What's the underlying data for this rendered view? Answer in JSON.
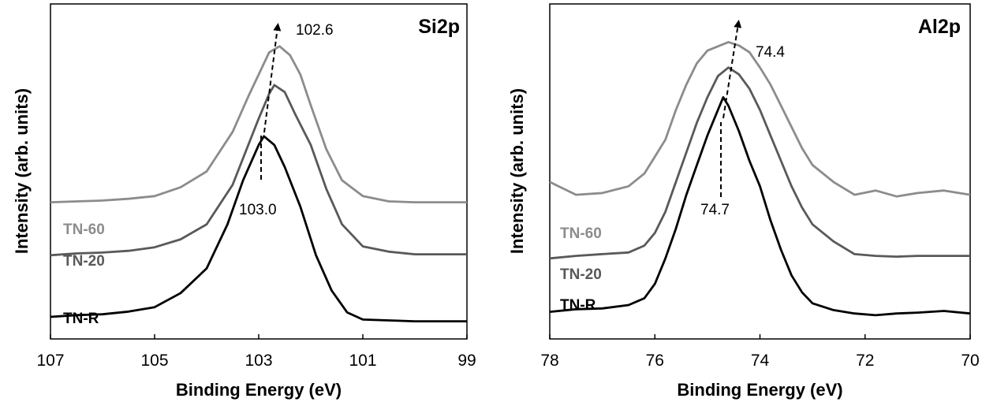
{
  "chart_data": [
    {
      "type": "line",
      "title": "Si2p",
      "xlabel": "Binding Energy (eV)",
      "ylabel": "Intensity (arb. units)",
      "xlim": [
        107,
        99
      ],
      "x_reversed": true,
      "x_ticks": [
        "107",
        "105",
        "103",
        "101",
        "99"
      ],
      "y_ticks_shown": false,
      "grid": false,
      "legend": "inline labels at left",
      "series": [
        {
          "name": "TN-60",
          "color": "#8c8c8c",
          "points": [
            [
              107.0,
              1.55
            ],
            [
              106.5,
              1.56
            ],
            [
              106.0,
              1.57
            ],
            [
              105.5,
              1.59
            ],
            [
              105.0,
              1.62
            ],
            [
              104.5,
              1.72
            ],
            [
              104.0,
              1.9
            ],
            [
              103.5,
              2.35
            ],
            [
              103.2,
              2.75
            ],
            [
              103.0,
              3.0
            ],
            [
              102.8,
              3.25
            ],
            [
              102.6,
              3.32
            ],
            [
              102.4,
              3.22
            ],
            [
              102.2,
              3.0
            ],
            [
              102.0,
              2.65
            ],
            [
              101.7,
              2.15
            ],
            [
              101.4,
              1.8
            ],
            [
              101.0,
              1.62
            ],
            [
              100.5,
              1.56
            ],
            [
              100.0,
              1.55
            ],
            [
              99.5,
              1.55
            ],
            [
              99.0,
              1.55
            ]
          ]
        },
        {
          "name": "TN-20",
          "color": "#595959",
          "points": [
            [
              107.0,
              0.95
            ],
            [
              106.5,
              0.97
            ],
            [
              106.0,
              0.98
            ],
            [
              105.5,
              1.0
            ],
            [
              105.0,
              1.04
            ],
            [
              104.5,
              1.13
            ],
            [
              104.0,
              1.3
            ],
            [
              103.5,
              1.75
            ],
            [
              103.2,
              2.2
            ],
            [
              103.0,
              2.5
            ],
            [
              102.8,
              2.78
            ],
            [
              102.7,
              2.88
            ],
            [
              102.5,
              2.8
            ],
            [
              102.3,
              2.55
            ],
            [
              102.0,
              2.2
            ],
            [
              101.7,
              1.7
            ],
            [
              101.4,
              1.3
            ],
            [
              101.0,
              1.05
            ],
            [
              100.5,
              0.99
            ],
            [
              100.0,
              0.96
            ],
            [
              99.5,
              0.96
            ],
            [
              99.0,
              0.96
            ]
          ]
        },
        {
          "name": "TN-R",
          "color": "#000000",
          "points": [
            [
              107.0,
              0.25
            ],
            [
              106.5,
              0.27
            ],
            [
              106.0,
              0.28
            ],
            [
              105.5,
              0.31
            ],
            [
              105.0,
              0.36
            ],
            [
              104.5,
              0.52
            ],
            [
              104.0,
              0.8
            ],
            [
              103.6,
              1.3
            ],
            [
              103.3,
              1.8
            ],
            [
              103.0,
              2.2
            ],
            [
              102.9,
              2.3
            ],
            [
              102.7,
              2.2
            ],
            [
              102.5,
              1.95
            ],
            [
              102.2,
              1.5
            ],
            [
              101.9,
              0.95
            ],
            [
              101.6,
              0.55
            ],
            [
              101.3,
              0.3
            ],
            [
              101.0,
              0.22
            ],
            [
              100.5,
              0.21
            ],
            [
              100.0,
              0.2
            ],
            [
              99.5,
              0.2
            ],
            [
              99.0,
              0.2
            ]
          ]
        }
      ],
      "annotations": [
        {
          "text": "103.0",
          "x": 103.0
        },
        {
          "text": "102.6",
          "x": 102.6
        }
      ]
    },
    {
      "type": "line",
      "title": "Al2p",
      "xlabel": "Binding Energy (eV)",
      "ylabel": "Intensity (arb. units)",
      "xlim": [
        78,
        70
      ],
      "x_reversed": true,
      "x_ticks": [
        "78",
        "76",
        "74",
        "72",
        "70"
      ],
      "y_ticks_shown": false,
      "grid": false,
      "legend": "inline labels at left",
      "series": [
        {
          "name": "TN-60",
          "color": "#8c8c8c",
          "points": [
            [
              78.0,
              1.85
            ],
            [
              77.5,
              1.7
            ],
            [
              77.0,
              1.72
            ],
            [
              76.5,
              1.8
            ],
            [
              76.2,
              1.95
            ],
            [
              76.0,
              2.15
            ],
            [
              75.8,
              2.35
            ],
            [
              75.6,
              2.7
            ],
            [
              75.4,
              3.0
            ],
            [
              75.2,
              3.25
            ],
            [
              75.0,
              3.4
            ],
            [
              74.8,
              3.45
            ],
            [
              74.6,
              3.5
            ],
            [
              74.4,
              3.46
            ],
            [
              74.2,
              3.38
            ],
            [
              74.0,
              3.2
            ],
            [
              73.8,
              3.0
            ],
            [
              73.6,
              2.75
            ],
            [
              73.4,
              2.5
            ],
            [
              73.2,
              2.25
            ],
            [
              73.0,
              2.05
            ],
            [
              72.6,
              1.85
            ],
            [
              72.2,
              1.7
            ],
            [
              71.8,
              1.75
            ],
            [
              71.4,
              1.68
            ],
            [
              71.0,
              1.72
            ],
            [
              70.5,
              1.75
            ],
            [
              70.0,
              1.7
            ]
          ]
        },
        {
          "name": "TN-20",
          "color": "#595959",
          "points": [
            [
              78.0,
              0.95
            ],
            [
              77.5,
              0.98
            ],
            [
              77.0,
              1.0
            ],
            [
              76.5,
              1.02
            ],
            [
              76.2,
              1.1
            ],
            [
              76.0,
              1.25
            ],
            [
              75.8,
              1.5
            ],
            [
              75.6,
              1.85
            ],
            [
              75.4,
              2.2
            ],
            [
              75.2,
              2.55
            ],
            [
              75.0,
              2.85
            ],
            [
              74.8,
              3.1
            ],
            [
              74.6,
              3.2
            ],
            [
              74.4,
              3.12
            ],
            [
              74.2,
              2.95
            ],
            [
              74.0,
              2.7
            ],
            [
              73.8,
              2.4
            ],
            [
              73.6,
              2.1
            ],
            [
              73.4,
              1.8
            ],
            [
              73.2,
              1.55
            ],
            [
              73.0,
              1.35
            ],
            [
              72.6,
              1.15
            ],
            [
              72.2,
              1.0
            ],
            [
              71.8,
              0.98
            ],
            [
              71.4,
              0.97
            ],
            [
              71.0,
              0.98
            ],
            [
              70.5,
              0.98
            ],
            [
              70.0,
              0.98
            ]
          ]
        },
        {
          "name": "TN-R",
          "color": "#000000",
          "points": [
            [
              78.0,
              0.32
            ],
            [
              77.5,
              0.35
            ],
            [
              77.0,
              0.36
            ],
            [
              76.5,
              0.4
            ],
            [
              76.2,
              0.48
            ],
            [
              76.0,
              0.65
            ],
            [
              75.8,
              0.95
            ],
            [
              75.6,
              1.3
            ],
            [
              75.4,
              1.7
            ],
            [
              75.2,
              2.05
            ],
            [
              75.0,
              2.4
            ],
            [
              74.8,
              2.7
            ],
            [
              74.7,
              2.85
            ],
            [
              74.6,
              2.75
            ],
            [
              74.4,
              2.45
            ],
            [
              74.2,
              2.1
            ],
            [
              74.0,
              1.8
            ],
            [
              73.8,
              1.4
            ],
            [
              73.6,
              1.05
            ],
            [
              73.4,
              0.75
            ],
            [
              73.2,
              0.55
            ],
            [
              73.0,
              0.42
            ],
            [
              72.6,
              0.34
            ],
            [
              72.2,
              0.3
            ],
            [
              71.8,
              0.28
            ],
            [
              71.4,
              0.3
            ],
            [
              71.0,
              0.31
            ],
            [
              70.5,
              0.33
            ],
            [
              70.0,
              0.3
            ]
          ]
        }
      ],
      "annotations": [
        {
          "text": "74.7",
          "x": 74.7
        },
        {
          "text": "74.4",
          "x": 74.4
        }
      ]
    }
  ]
}
